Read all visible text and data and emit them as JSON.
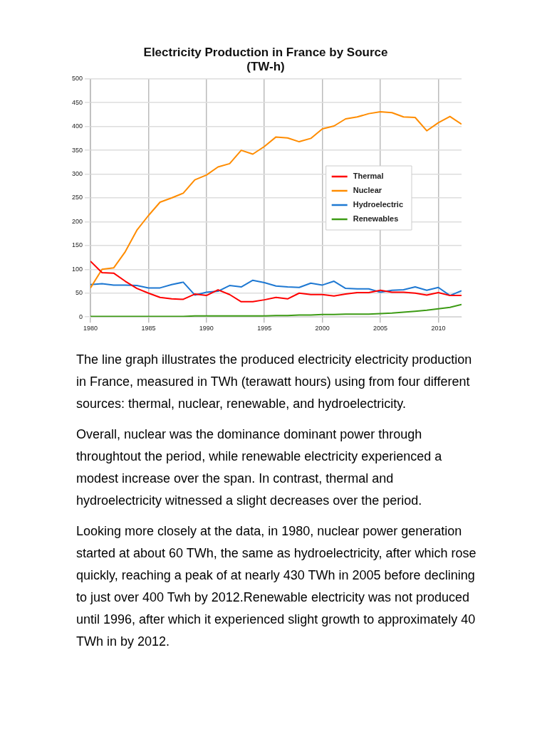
{
  "chart_data": {
    "type": "line",
    "title": "Electricity Production in France by Source",
    "subtitle": "(TW-h)",
    "x": [
      1980,
      1981,
      1982,
      1983,
      1984,
      1985,
      1986,
      1987,
      1988,
      1989,
      1990,
      1991,
      1992,
      1993,
      1994,
      1995,
      1996,
      1997,
      1998,
      1999,
      2000,
      2001,
      2002,
      2003,
      2004,
      2005,
      2006,
      2007,
      2008,
      2009,
      2010,
      2011,
      2012
    ],
    "series": [
      {
        "name": "Thermal",
        "color": "#ff0000",
        "values": [
          117,
          93,
          92,
          75,
          60,
          50,
          41,
          38,
          37,
          48,
          45,
          57,
          47,
          32,
          32,
          36,
          41,
          38,
          50,
          47,
          47,
          44,
          48,
          51,
          51,
          56,
          52,
          52,
          50,
          46,
          51,
          45,
          45
        ]
      },
      {
        "name": "Nuclear",
        "color": "#ff8c00",
        "values": [
          61,
          100,
          103,
          137,
          182,
          213,
          241,
          250,
          260,
          288,
          298,
          315,
          322,
          350,
          342,
          358,
          378,
          376,
          368,
          375,
          395,
          401,
          416,
          420,
          427,
          431,
          429,
          420,
          419,
          391,
          408,
          421,
          405
        ]
      },
      {
        "name": "Hydroelectric",
        "color": "#1e78d2",
        "values": [
          68,
          70,
          67,
          67,
          66,
          61,
          61,
          68,
          73,
          46,
          52,
          54,
          66,
          63,
          77,
          72,
          65,
          63,
          62,
          71,
          67,
          75,
          60,
          59,
          59,
          52,
          56,
          57,
          63,
          56,
          62,
          45,
          55
        ]
      },
      {
        "name": "Renewables",
        "color": "#3c9b14",
        "values": [
          1,
          1,
          1,
          1,
          1,
          1,
          1,
          1,
          1,
          2,
          2,
          2,
          2,
          2,
          2,
          2,
          3,
          3,
          4,
          4,
          5,
          5,
          6,
          6,
          6,
          7,
          8,
          10,
          12,
          14,
          17,
          20,
          26
        ]
      }
    ],
    "xlim": [
      1980,
      2012
    ],
    "xticks": [
      1980,
      1985,
      1990,
      1995,
      2000,
      2005,
      2010
    ],
    "ylim": [
      0,
      500
    ],
    "yticks": [
      0,
      50,
      100,
      150,
      200,
      250,
      300,
      350,
      400,
      450,
      500
    ],
    "grid": true,
    "legend": "right",
    "marker": "none",
    "line_style": "solid",
    "annotations": [
      "The line graph illustrates the produced electricity electricity production in France, measured in TWh (terawatt hours) using from four different sources: thermal, nuclear, renewable, and hydroelectricity.",
      "Overall, nuclear was the dominance dominant power through throughtout the period, while renewable electricity experienced a modest increase over the span. In contrast, thermal and hydroelectricity witnessed a slight decreases over the period.",
      "Looking more closely at the data, in 1980, nuclear power generation started at about 60 TWh, the same as hydroelectricity, after which rose quickly, reaching a peak of at nearly 430 TWh in 2005 before declining to just over 400 Twh by 2012.Renewable electricity was not produced until 1996, after which it experienced slight growth to approximately 40 TWh in by 2012."
    ]
  }
}
